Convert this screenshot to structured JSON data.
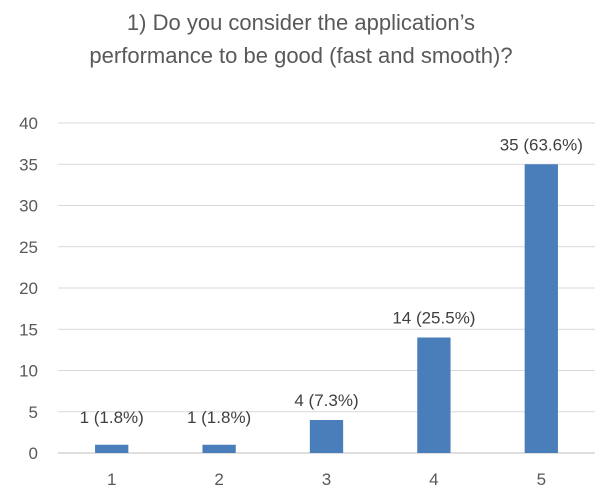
{
  "chart_data": {
    "type": "bar",
    "title_lines": [
      "1) Do you consider the application’s",
      "performance to be good (fast and smooth)?"
    ],
    "categories": [
      "1",
      "2",
      "3",
      "4",
      "5"
    ],
    "values": [
      1,
      1,
      4,
      14,
      35
    ],
    "data_labels": [
      "1 (1.8%)",
      "1 (1.8%)",
      "4 (7.3%)",
      "14 (25.5%)",
      "35 (63.6%)"
    ],
    "y_ticks": [
      0,
      5,
      10,
      15,
      20,
      25,
      30,
      35,
      40
    ],
    "ylim": [
      0,
      40
    ],
    "grid": true,
    "legend": "none",
    "colors": {
      "bar": "#4a7ebb",
      "grid": "#d9d9d9",
      "axis": "#bfbfbf"
    }
  }
}
